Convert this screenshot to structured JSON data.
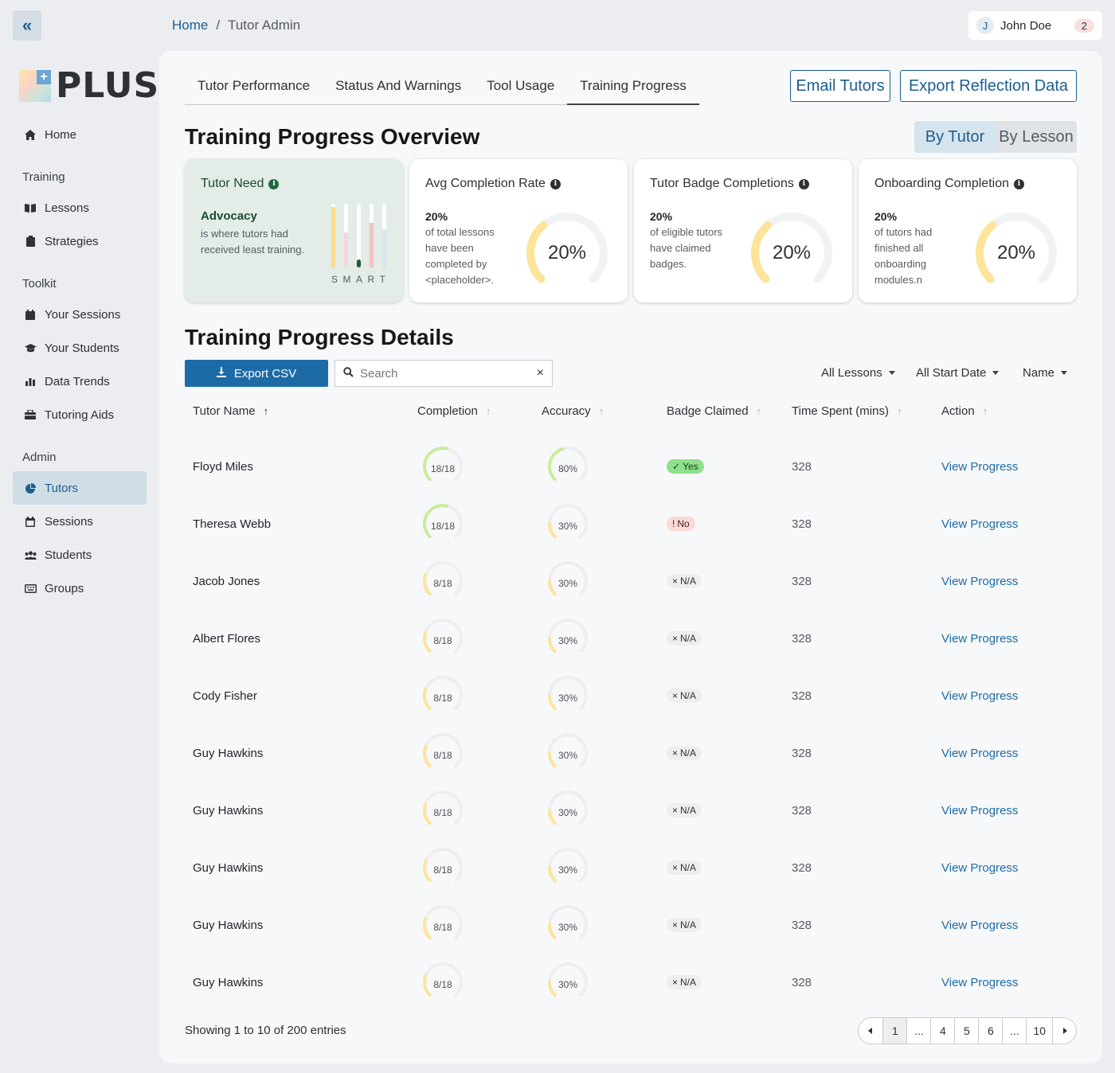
{
  "breadcrumb": {
    "home": "Home",
    "sep": "/",
    "current": "Tutor Admin"
  },
  "user": {
    "initial": "J",
    "name": "John Doe",
    "count": "2"
  },
  "brand": {
    "name": "PLUS"
  },
  "sidebar": {
    "home": "Home",
    "training_label": "Training",
    "training": [
      "Lessons",
      "Strategies"
    ],
    "toolkit_label": "Toolkit",
    "toolkit": [
      "Your Sessions",
      "Your Students",
      "Data Trends",
      "Tutoring Aids"
    ],
    "admin_label": "Admin",
    "admin": [
      "Tutors",
      "Sessions",
      "Students",
      "Groups"
    ]
  },
  "tabs": [
    "Tutor Performance",
    "Status And Warnings",
    "Tool Usage",
    "Training Progress"
  ],
  "active_tab": "Training Progress",
  "buttons": {
    "email": "Email Tutors",
    "export_reflection": "Export Reflection Data"
  },
  "overview": {
    "title": "Training Progress Overview",
    "toggle": [
      "By Tutor",
      "By Lesson"
    ],
    "need": {
      "title": "Tutor Need",
      "topic": "Advocacy",
      "desc": "is where tutors had received least training.",
      "letters": [
        "S",
        "M",
        "A",
        "R",
        "T"
      ],
      "levels": [
        0.95,
        0.55,
        0.15,
        0.7,
        0.6
      ]
    },
    "cards": [
      {
        "title": "Avg Completion Rate",
        "value": "20%",
        "desc": "of total lessons have been completed by <placeholder>.",
        "ring": "20%",
        "fraction": 0.2
      },
      {
        "title": "Tutor Badge Completions",
        "value": "20%",
        "desc": "of eligible tutors have claimed badges.",
        "ring": "20%",
        "fraction": 0.2
      },
      {
        "title": "Onboarding Completion",
        "value": "20%",
        "desc": "of tutors had finished all onboarding modules.n",
        "ring": "20%",
        "fraction": 0.2
      }
    ]
  },
  "details": {
    "title": "Training Progress Details",
    "export": "Export CSV",
    "search_placeholder": "Search",
    "filters": [
      "All Lessons",
      "All Start Date",
      "Name"
    ],
    "columns": [
      "Tutor Name",
      "Completion",
      "Accuracy",
      "Badge Claimed",
      "Time Spent (mins)",
      "Action"
    ],
    "rows": [
      {
        "name": "Floyd Miles",
        "completion": "18/18",
        "comp_frac": 1.0,
        "accuracy": "80%",
        "acc_frac": 0.8,
        "badge": "Yes",
        "badge_type": "yes",
        "time": "328",
        "action": "View Progress"
      },
      {
        "name": "Theresa Webb",
        "completion": "18/18",
        "comp_frac": 1.0,
        "accuracy": "30%",
        "acc_frac": 0.3,
        "badge": "No",
        "badge_type": "no",
        "time": "328",
        "action": "View Progress"
      },
      {
        "name": "Jacob Jones",
        "completion": "8/18",
        "comp_frac": 0.44,
        "accuracy": "30%",
        "acc_frac": 0.3,
        "badge": "N/A",
        "badge_type": "na",
        "time": "328",
        "action": "View Progress"
      },
      {
        "name": "Albert Flores",
        "completion": "8/18",
        "comp_frac": 0.44,
        "accuracy": "30%",
        "acc_frac": 0.3,
        "badge": "N/A",
        "badge_type": "na",
        "time": "328",
        "action": "View Progress"
      },
      {
        "name": "Cody Fisher",
        "completion": "8/18",
        "comp_frac": 0.44,
        "accuracy": "30%",
        "acc_frac": 0.3,
        "badge": "N/A",
        "badge_type": "na",
        "time": "328",
        "action": "View Progress"
      },
      {
        "name": "Guy Hawkins",
        "completion": "8/18",
        "comp_frac": 0.44,
        "accuracy": "30%",
        "acc_frac": 0.3,
        "badge": "N/A",
        "badge_type": "na",
        "time": "328",
        "action": "View Progress"
      },
      {
        "name": "Guy Hawkins",
        "completion": "8/18",
        "comp_frac": 0.44,
        "accuracy": "30%",
        "acc_frac": 0.3,
        "badge": "N/A",
        "badge_type": "na",
        "time": "328",
        "action": "View Progress"
      },
      {
        "name": "Guy Hawkins",
        "completion": "8/18",
        "comp_frac": 0.44,
        "accuracy": "30%",
        "acc_frac": 0.3,
        "badge": "N/A",
        "badge_type": "na",
        "time": "328",
        "action": "View Progress"
      },
      {
        "name": "Guy Hawkins",
        "completion": "8/18",
        "comp_frac": 0.44,
        "accuracy": "30%",
        "acc_frac": 0.3,
        "badge": "N/A",
        "badge_type": "na",
        "time": "328",
        "action": "View Progress"
      },
      {
        "name": "Guy Hawkins",
        "completion": "8/18",
        "comp_frac": 0.44,
        "accuracy": "30%",
        "acc_frac": 0.3,
        "badge": "N/A",
        "badge_type": "na",
        "time": "328",
        "action": "View Progress"
      }
    ],
    "showing": "Showing 1 to 10 of 200 entries",
    "pages": [
      "1",
      "...",
      "4",
      "5",
      "6",
      "...",
      "10"
    ],
    "current_page": "1"
  },
  "colors": {
    "accent": "#1d5f8f",
    "yellow": "#fde49a",
    "green": "#c9ec9e"
  }
}
